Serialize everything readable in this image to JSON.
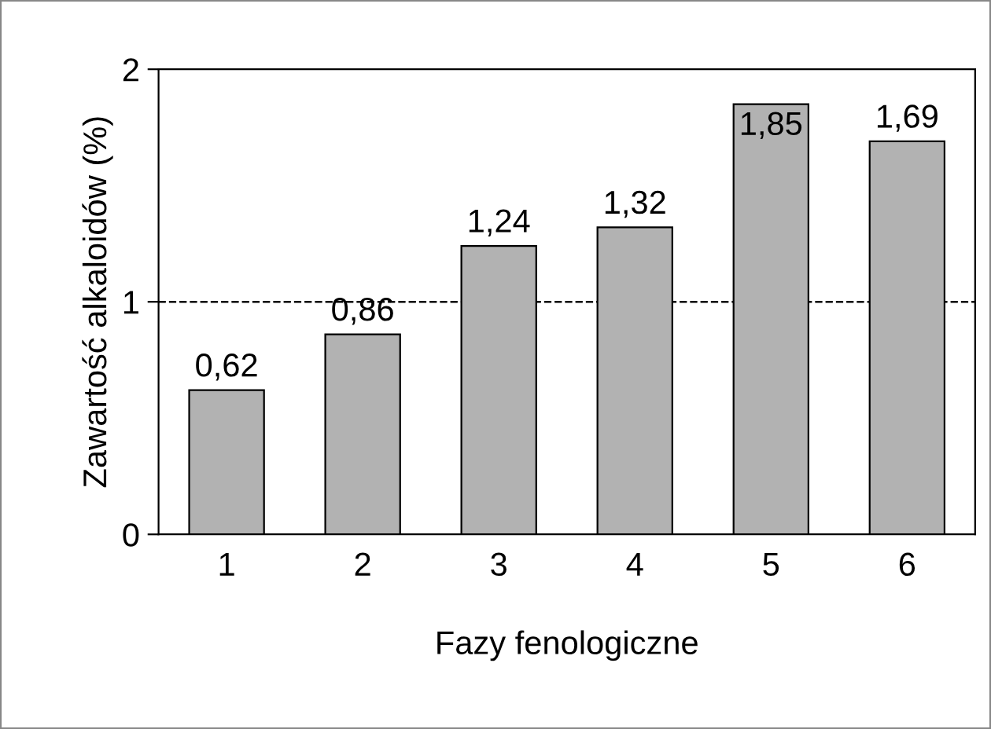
{
  "chart_data": {
    "type": "bar",
    "categories": [
      "1",
      "2",
      "3",
      "4",
      "5",
      "6"
    ],
    "values": [
      0.62,
      0.86,
      1.24,
      1.32,
      1.85,
      1.69
    ],
    "value_labels": [
      "0,62",
      "0,86",
      "1,24",
      "1,32",
      "1,85",
      "1,69"
    ],
    "color": "#b2b2b2",
    "xlabel": "Fazy fenologiczne",
    "ylabel": "Zawartość alkaloidów (%)",
    "ylim": [
      0,
      2
    ],
    "yticks": [
      0,
      1,
      2
    ],
    "ref_lines": [
      {
        "axis": "y",
        "value": 1,
        "line_style": "dashed",
        "color": "#000000"
      }
    ],
    "grid": false,
    "legend": false
  }
}
